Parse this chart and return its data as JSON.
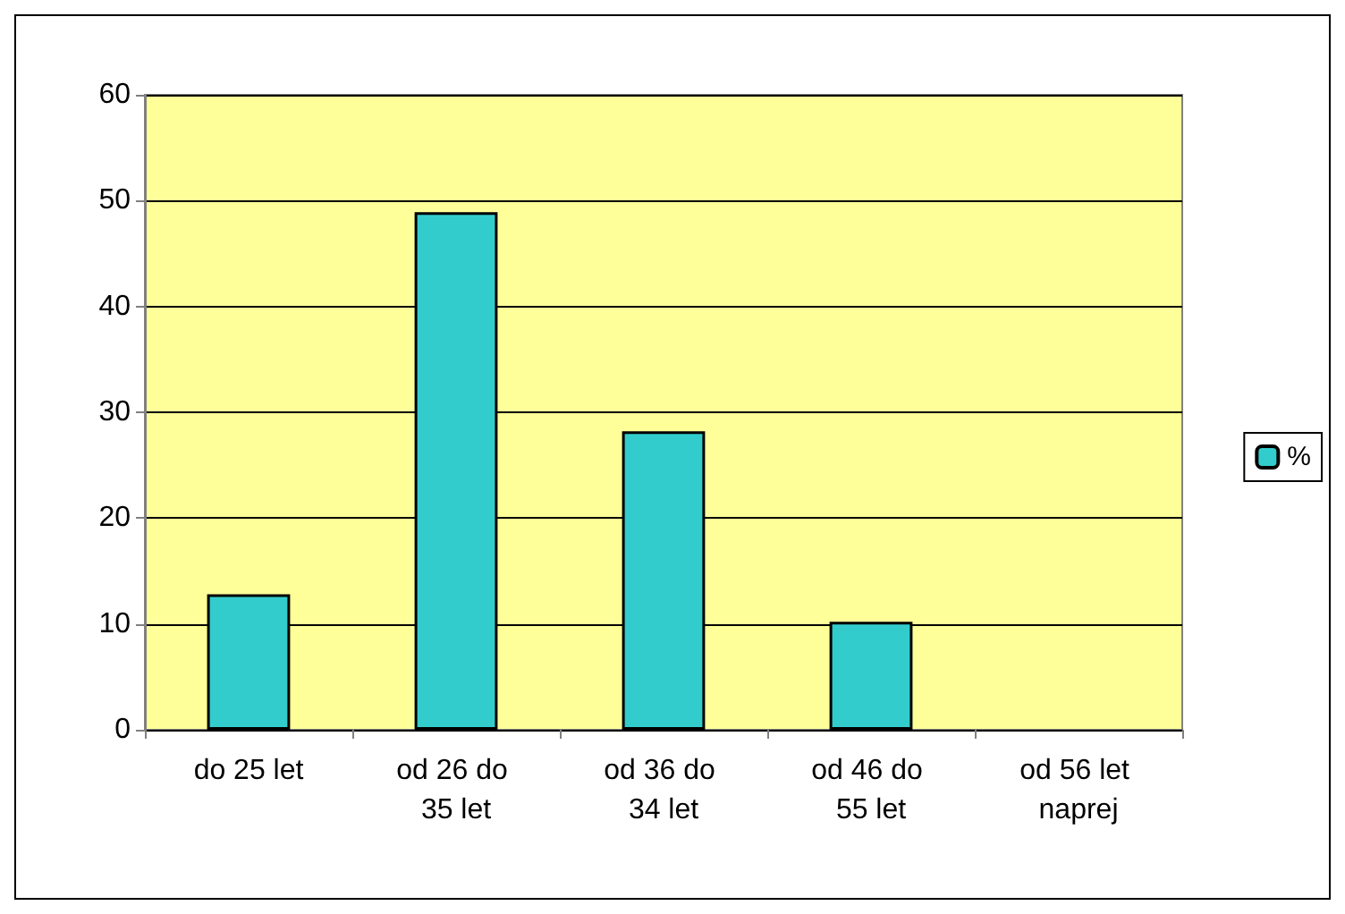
{
  "chart_data": {
    "type": "bar",
    "categories": [
      "do 25 let",
      "od 26 do 35 let",
      "od 36 do 34 let",
      "od 46 do 55 let",
      "od 56 let naprej"
    ],
    "series": [
      {
        "name": "%",
        "color": "#33cccc",
        "values": [
          12.8,
          48.9,
          28.2,
          10.2,
          0
        ]
      }
    ],
    "ylim": [
      0,
      60
    ],
    "yticks": [
      0,
      10,
      20,
      30,
      40,
      50,
      60
    ],
    "grid": "y",
    "legend": "right"
  }
}
